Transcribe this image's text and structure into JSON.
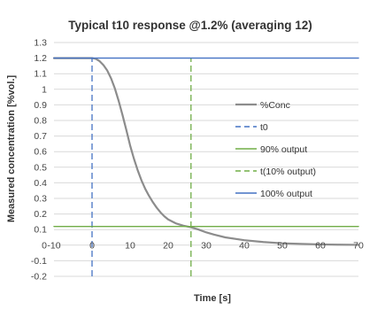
{
  "chart_data": {
    "type": "line",
    "title": "Typical t10 response @1.2% (averaging 12)",
    "xlabel": "Time [s]",
    "ylabel": "Measured concentration [%vol.]",
    "xlim": [
      -10,
      70
    ],
    "ylim": [
      -0.2,
      1.3
    ],
    "x_ticks": [
      -10,
      0,
      10,
      20,
      30,
      40,
      50,
      60,
      70
    ],
    "y_ticks": [
      -0.2,
      -0.1,
      0,
      0.1,
      0.2,
      0.3,
      0.4,
      0.5,
      0.6,
      0.7,
      0.8,
      0.9,
      1,
      1.1,
      1.2,
      1.3
    ],
    "x_tick_labels": [
      "-10",
      "0",
      "10",
      "20",
      "30",
      "40",
      "50",
      "60",
      "70"
    ],
    "y_tick_labels": [
      "-0.2",
      "-0.1",
      "0",
      "0.1",
      "0.2",
      "0.3",
      "0.4",
      "0.5",
      "0.6",
      "0.7",
      "0.8",
      "0.9",
      "1",
      "1.1",
      "1.2",
      "1.3"
    ],
    "grid": {
      "horizontal": true,
      "vertical": false
    },
    "legend_position": "right",
    "series": [
      {
        "name": "%Conc",
        "color": "#8c8c8c",
        "style": "solid",
        "x": [
          -10,
          0,
          1,
          2,
          3,
          4,
          5,
          6,
          7,
          8,
          9,
          10,
          11,
          12,
          13,
          14,
          15,
          16,
          17,
          18,
          19,
          20,
          22,
          24,
          26,
          28,
          30,
          32,
          35,
          40,
          45,
          50,
          55,
          60,
          65,
          70
        ],
        "y": [
          1.2,
          1.2,
          1.195,
          1.18,
          1.155,
          1.12,
          1.07,
          1.005,
          0.925,
          0.835,
          0.74,
          0.64,
          0.555,
          0.48,
          0.415,
          0.36,
          0.315,
          0.275,
          0.24,
          0.21,
          0.185,
          0.165,
          0.14,
          0.125,
          0.115,
          0.1,
          0.082,
          0.068,
          0.05,
          0.032,
          0.02,
          0.012,
          0.008,
          0.005,
          0.003,
          0.002
        ]
      },
      {
        "name": "t0",
        "color": "#4472c4",
        "style": "dashed",
        "x": [
          0,
          0
        ],
        "y": [
          -0.2,
          1.2
        ]
      },
      {
        "name": "90% output",
        "color": "#70ad47",
        "style": "solid",
        "x": [
          -10,
          70
        ],
        "y": [
          0.12,
          0.12
        ]
      },
      {
        "name": "t(10% output)",
        "color": "#70ad47",
        "style": "dashed",
        "x": [
          26,
          26
        ],
        "y": [
          -0.2,
          1.2
        ]
      },
      {
        "name": "100% output",
        "color": "#4472c4",
        "style": "solid",
        "x": [
          -10,
          70
        ],
        "y": [
          1.2,
          1.2
        ]
      }
    ]
  }
}
